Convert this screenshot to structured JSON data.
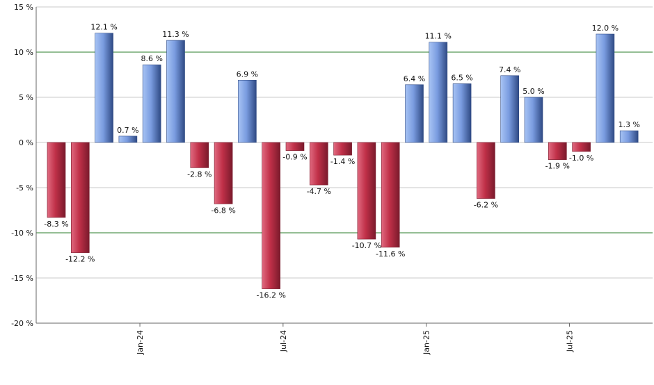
{
  "chart_data": {
    "type": "bar",
    "title": "",
    "xlabel": "",
    "ylabel": "",
    "ylim": [
      -20,
      15
    ],
    "y_ticks": [
      15,
      10,
      5,
      0,
      -5,
      -10,
      -15,
      -20
    ],
    "y_tick_suffix": " %",
    "grid": true,
    "reference_lines": [
      10,
      -10
    ],
    "x_ticks": [
      {
        "label": "Jan-24",
        "at_index": 4
      },
      {
        "label": "Jul-24",
        "at_index": 10
      },
      {
        "label": "Jan-25",
        "at_index": 16
      },
      {
        "label": "Jul-25",
        "at_index": 22
      }
    ],
    "values": [
      -8.3,
      -12.2,
      12.1,
      0.7,
      8.6,
      11.3,
      -2.8,
      -6.8,
      6.9,
      -16.2,
      -0.9,
      -4.7,
      -1.4,
      -10.7,
      -11.6,
      6.4,
      11.1,
      6.5,
      -6.2,
      7.4,
      5.0,
      -1.9,
      -1.0,
      12.0,
      1.3
    ],
    "value_labels": [
      "-8.3 %",
      "-12.2 %",
      "12.1 %",
      "0.7 %",
      "8.6 %",
      "11.3 %",
      "-2.8 %",
      "-6.8 %",
      "6.9 %",
      "-16.2 %",
      "-0.9 %",
      "-4.7 %",
      "-1.4 %",
      "-10.7 %",
      "-11.6 %",
      "6.4 %",
      "11.1 %",
      "6.5 %",
      "-6.2 %",
      "7.4 %",
      "5.0 %",
      "-1.9 %",
      "-1.0 %",
      "12.0 %",
      "1.3 %"
    ],
    "colors": {
      "positive": "#7a9ce0",
      "positive_dark": "#2f4a84",
      "negative": "#c03048",
      "negative_dark": "#7a1a2c",
      "grid": "#c8c8c8",
      "reference_line": "#2a7d2a",
      "axis": "#666666"
    }
  }
}
